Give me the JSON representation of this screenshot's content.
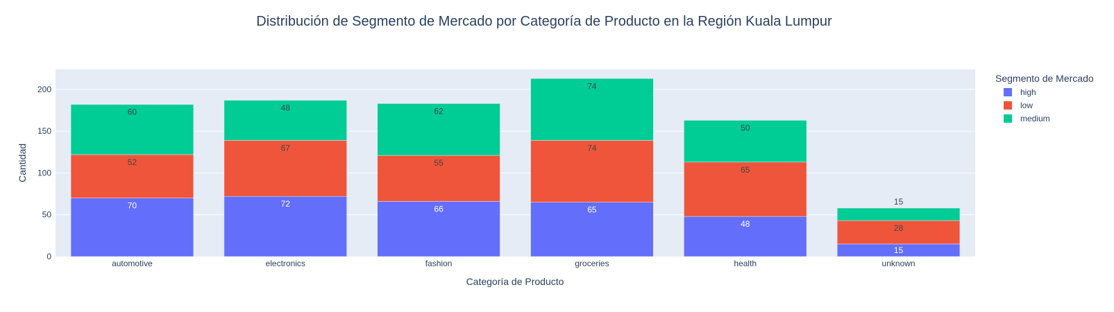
{
  "chart_data": {
    "type": "bar",
    "barmode": "stack",
    "title": "Distribución de Segmento de Mercado por Categoría de Producto en la Región Kuala Lumpur",
    "xlabel": "Categoría de Producto",
    "ylabel": "Cantidad",
    "categories": [
      "automotive",
      "electronics",
      "fashion",
      "groceries",
      "health",
      "unknown"
    ],
    "ylim": [
      0,
      224
    ],
    "yticks": [
      0,
      50,
      100,
      150,
      200
    ],
    "grid": true,
    "legend": {
      "title": "Segmento de Mercado",
      "placement": "top-right"
    },
    "series": [
      {
        "name": "high",
        "color": "#636efa",
        "label_color": "#ffffff",
        "values": [
          70,
          72,
          66,
          65,
          48,
          15
        ]
      },
      {
        "name": "low",
        "color": "#ef553b",
        "label_color": "#444444",
        "values": [
          52,
          67,
          55,
          74,
          65,
          28
        ]
      },
      {
        "name": "medium",
        "color": "#00cc96",
        "label_color": "#444444",
        "values": [
          60,
          48,
          62,
          74,
          50,
          15
        ]
      }
    ]
  }
}
